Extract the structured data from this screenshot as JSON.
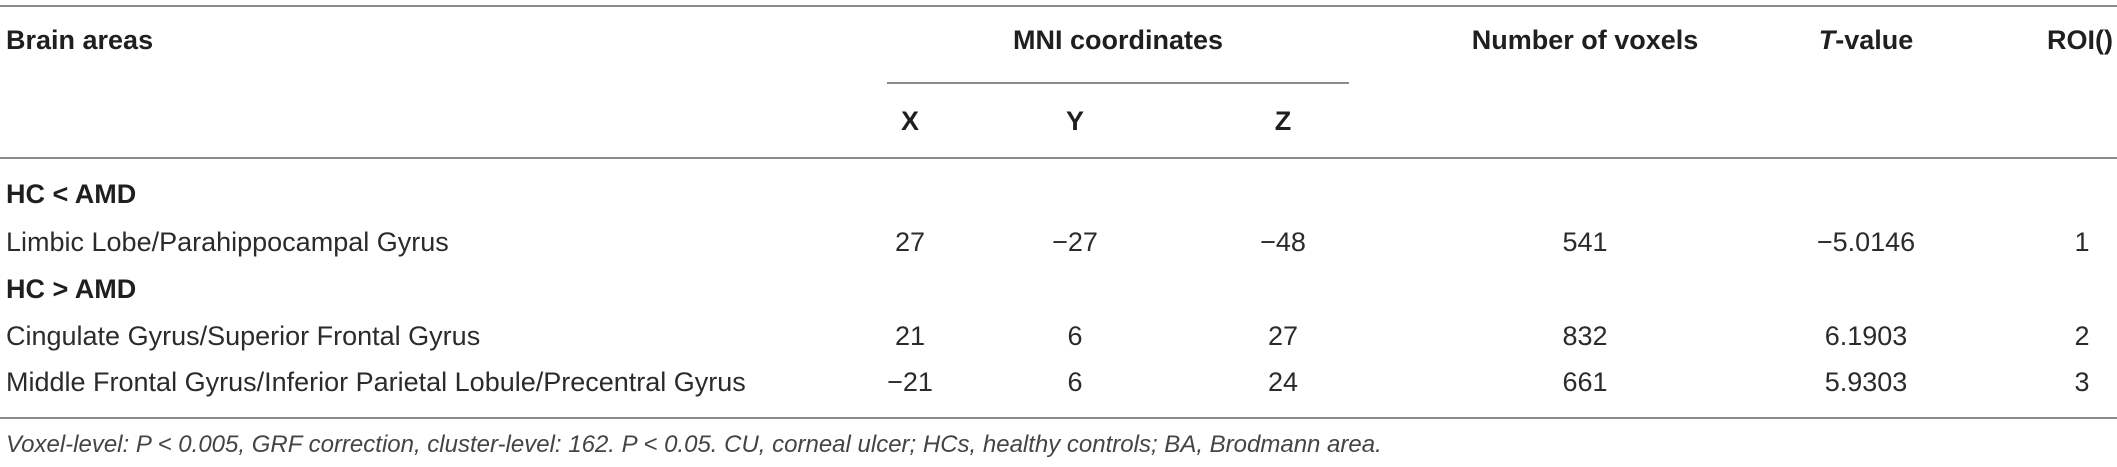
{
  "table": {
    "headers": {
      "brain_areas": "Brain areas",
      "mni": "MNI coordinates",
      "x": "X",
      "y": "Y",
      "z": "Z",
      "voxels": "Number of voxels",
      "t_prefix": "T",
      "t_suffix": "-value",
      "roi": "ROI()"
    },
    "groups": [
      {
        "label": "HC < AMD",
        "rows": [
          {
            "area": "Limbic Lobe/Parahippocampal Gyrus",
            "x": "27",
            "y": "−27",
            "z": "−48",
            "voxels": "541",
            "t": "−5.0146",
            "roi": "1"
          }
        ]
      },
      {
        "label": "HC > AMD",
        "rows": [
          {
            "area": "Cingulate Gyrus/Superior Frontal Gyrus",
            "x": "21",
            "y": "6",
            "z": "27",
            "voxels": "832",
            "t": "6.1903",
            "roi": "2"
          },
          {
            "area": "Middle Frontal Gyrus/Inferior Parietal Lobule/Precentral Gyrus",
            "x": "−21",
            "y": "6",
            "z": "24",
            "voxels": "661",
            "t": "5.9303",
            "roi": "3"
          }
        ]
      }
    ],
    "footnote": "Voxel-level: P < 0.005, GRF correction, cluster-level: 162. P < 0.05. CU, corneal ulcer; HCs, healthy controls; BA, Brodmann area."
  }
}
